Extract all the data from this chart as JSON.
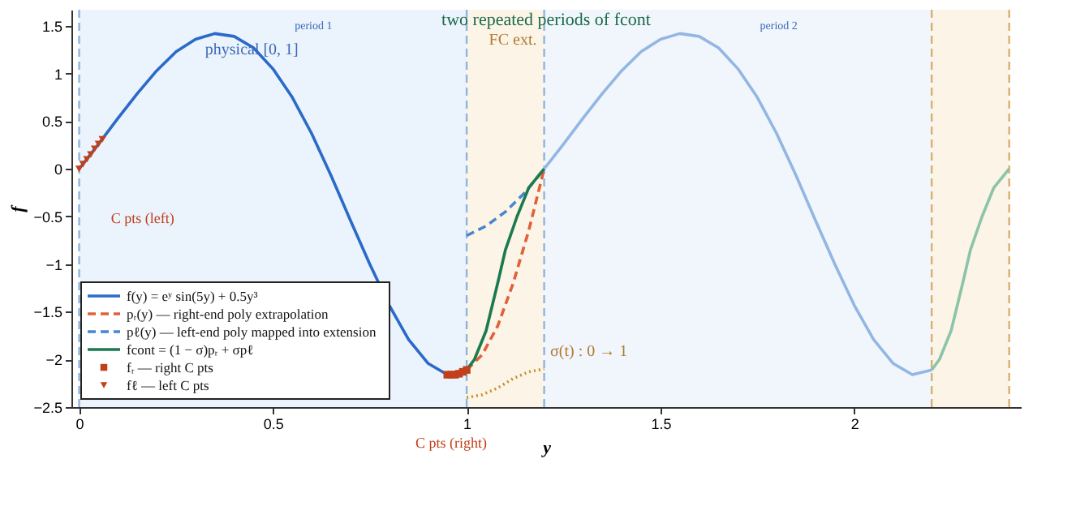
{
  "chart_data": {
    "type": "line",
    "title": "two repeated periods of fcont",
    "xlabel": "y",
    "ylabel": "f",
    "xlim": [
      -0.02,
      2.43
    ],
    "ylim": [
      -2.5,
      1.67
    ],
    "xticks": [
      0,
      0.5,
      1,
      1.5,
      2
    ],
    "yticks": [
      -2.5,
      -2,
      -1.5,
      -1,
      -0.5,
      0,
      0.5,
      1,
      1.5
    ],
    "grid": false,
    "legend": "bottom left",
    "series": [
      {
        "name": "f(y) = eʸ sin(5y) + 0.5y³",
        "color": "#2a6ac8",
        "line_style": "solid",
        "x": [
          0,
          0.05,
          0.1,
          0.15,
          0.2,
          0.25,
          0.3,
          0.35,
          0.4,
          0.45,
          0.5,
          0.55,
          0.6,
          0.65,
          0.7,
          0.75,
          0.8,
          0.85,
          0.9,
          0.95,
          1.0
        ],
        "values": [
          0,
          0.26,
          0.53,
          0.79,
          1.03,
          1.23,
          1.36,
          1.42,
          1.39,
          1.27,
          1.05,
          0.75,
          0.37,
          -0.07,
          -0.54,
          -1.0,
          -1.43,
          -1.79,
          -2.04,
          -2.16,
          -2.11
        ]
      },
      {
        "name": "pᵣ(y) — right-end poly extrapolation",
        "color": "#e0603a",
        "line_style": "dashed",
        "x": [
          1.0,
          1.04,
          1.08,
          1.12,
          1.16,
          1.2
        ],
        "values": [
          -2.11,
          -1.95,
          -1.65,
          -1.2,
          -0.65,
          0
        ]
      },
      {
        "name": "pℓ(y) — left-end poly mapped into extension",
        "color": "#4a86d0",
        "line_style": "dashed",
        "x": [
          1.0,
          1.05,
          1.1,
          1.15,
          1.2
        ],
        "values": [
          -0.7,
          -0.6,
          -0.45,
          -0.25,
          0
        ]
      },
      {
        "name": "fcont = (1 − σ)pᵣ + σpℓ",
        "color": "#1a7a50",
        "line_style": "solid",
        "x": [
          1.0,
          1.02,
          1.05,
          1.08,
          1.1,
          1.13,
          1.16,
          1.2
        ],
        "values": [
          -2.11,
          -2.0,
          -1.7,
          -1.2,
          -0.85,
          -0.5,
          -0.2,
          0
        ]
      },
      {
        "color": "#93b6e2",
        "line_style": "solid",
        "x": [
          1.2,
          1.25,
          1.3,
          1.35,
          1.4,
          1.45,
          1.5,
          1.55,
          1.6,
          1.65,
          1.7,
          1.75,
          1.8,
          1.85,
          1.9,
          1.95,
          2.0,
          2.05,
          2.1,
          2.15,
          2.2
        ],
        "values": [
          0,
          0.26,
          0.53,
          0.79,
          1.03,
          1.23,
          1.36,
          1.42,
          1.39,
          1.27,
          1.05,
          0.75,
          0.37,
          -0.07,
          -0.54,
          -1.0,
          -1.43,
          -1.79,
          -2.04,
          -2.16,
          -2.11
        ]
      },
      {
        "color": "#8cc4a8",
        "line_style": "solid",
        "x": [
          2.2,
          2.22,
          2.25,
          2.28,
          2.3,
          2.33,
          2.36,
          2.4
        ],
        "values": [
          -2.11,
          -2.0,
          -1.7,
          -1.2,
          -0.85,
          -0.5,
          -0.2,
          0
        ]
      },
      {
        "color": "#c8902a",
        "line_style": "dotted",
        "x": [
          1.0,
          1.04,
          1.08,
          1.12,
          1.16,
          1.2
        ],
        "values": [
          -2.4,
          -2.37,
          -2.3,
          -2.2,
          -2.13,
          -2.1
        ]
      },
      {
        "name": "fᵣ — right C pts",
        "type": "scatter",
        "marker": "square",
        "color": "#c0401a",
        "x": [
          0.95,
          0.96,
          0.97,
          0.98,
          0.99,
          1.0
        ],
        "values": [
          -2.16,
          -2.16,
          -2.16,
          -2.15,
          -2.13,
          -2.11
        ]
      },
      {
        "name": "fℓ — left C pts",
        "type": "scatter",
        "marker": "triangle",
        "color": "#c0401a",
        "x": [
          0,
          0.01,
          0.02,
          0.03,
          0.04,
          0.05,
          0.06
        ],
        "values": [
          0,
          0.05,
          0.1,
          0.15,
          0.21,
          0.26,
          0.31
        ]
      }
    ],
    "bands": [
      {
        "axis": "x",
        "from": 0,
        "to": 1,
        "color": "#ebf3fc"
      },
      {
        "axis": "x",
        "from": 1,
        "to": 1.2,
        "color": "#fcf4e6"
      },
      {
        "axis": "x",
        "from": 1.2,
        "to": 2.2,
        "color": "#f1f6fc"
      },
      {
        "axis": "x",
        "from": 2.2,
        "to": 2.4,
        "color": "#fcf4e6"
      }
    ],
    "ref_lines": [
      {
        "axis": "x",
        "value": 0,
        "color": "#8fb4e0",
        "line_style": "dashed"
      },
      {
        "axis": "x",
        "value": 1,
        "color": "#8fb4e0",
        "line_style": "dashed"
      },
      {
        "axis": "x",
        "value": 1.2,
        "color": "#8fb4e0",
        "line_style": "dashed"
      },
      {
        "axis": "x",
        "value": 2.2,
        "color": "#d8b070",
        "line_style": "dashed"
      },
      {
        "axis": "x",
        "value": 2.4,
        "color": "#d8b070",
        "line_style": "dashed"
      }
    ],
    "annotations": [
      "period 1",
      "period 2",
      "physical [0, 1]",
      "FC ext.",
      "C pts (left)",
      "C pts (right)",
      "σ(t) : 0 → 1"
    ]
  }
}
